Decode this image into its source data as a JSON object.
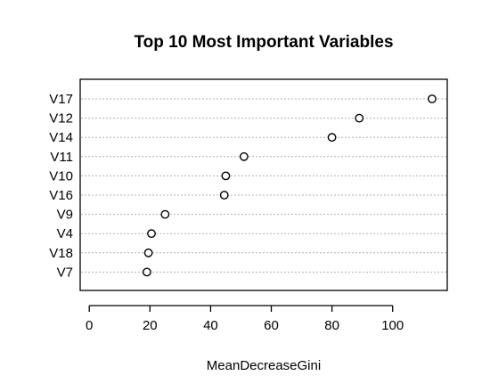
{
  "chart_data": {
    "type": "scatter",
    "title": "Top 10 Most Important Variables",
    "xlabel": "MeanDecreaseGini",
    "ylabel": "",
    "xlim": [
      -3,
      118
    ],
    "xticks": [
      0,
      20,
      40,
      60,
      80,
      100
    ],
    "categories": [
      "V17",
      "V12",
      "V14",
      "V11",
      "V10",
      "V16",
      "V9",
      "V4",
      "V18",
      "V7"
    ],
    "values": [
      113,
      89,
      80,
      51,
      45,
      44.5,
      25,
      20.5,
      19.5,
      19
    ],
    "grid": "horizontal dotted guides",
    "legend": "none"
  }
}
